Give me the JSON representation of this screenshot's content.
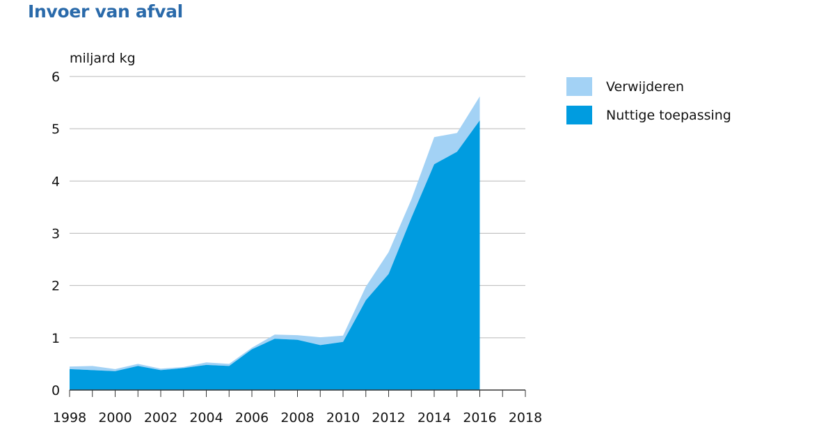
{
  "chart_data": {
    "type": "area",
    "stacked": true,
    "title": "Invoer van afval",
    "ylabel": "miljard kg",
    "xlabel": "",
    "ylim": [
      0,
      6
    ],
    "xlim": [
      1998,
      2018
    ],
    "yticks": [
      "0",
      "1",
      "2",
      "3",
      "4",
      "5",
      "6"
    ],
    "xticks": [
      "1998",
      "2000",
      "2002",
      "2004",
      "2006",
      "2008",
      "2010",
      "2012",
      "2014",
      "2016",
      "2018"
    ],
    "grid": "horizontal",
    "legend_position": "right",
    "x": [
      1998,
      1999,
      2000,
      2001,
      2002,
      2003,
      2004,
      2005,
      2006,
      2007,
      2008,
      2009,
      2010,
      2011,
      2012,
      2013,
      2014,
      2015,
      2016
    ],
    "series": [
      {
        "name": "Nuttige toepassing",
        "color": "#009ce0",
        "values": [
          0.4,
          0.38,
          0.36,
          0.46,
          0.38,
          0.42,
          0.48,
          0.46,
          0.78,
          0.98,
          0.96,
          0.86,
          0.92,
          1.72,
          2.22,
          3.3,
          4.32,
          4.56,
          5.16
        ]
      },
      {
        "name": "Verwijderen",
        "color": "#a3d2f5",
        "values": [
          0.05,
          0.08,
          0.04,
          0.04,
          0.03,
          0.02,
          0.05,
          0.04,
          0.03,
          0.08,
          0.09,
          0.15,
          0.12,
          0.26,
          0.42,
          0.35,
          0.52,
          0.36,
          0.46
        ]
      }
    ],
    "legend": [
      "Verwijderen",
      "Nuttige toepassing"
    ]
  }
}
